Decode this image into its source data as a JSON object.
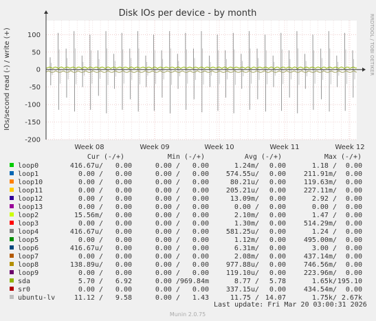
{
  "chart_data": {
    "type": "line",
    "title": "Disk IOs per device - by month",
    "ylabel": "IOs/second read (-) / write (+)",
    "ylim": [
      -200,
      140
    ],
    "yticks": [
      100,
      50,
      0,
      -50,
      -100,
      -150,
      -200
    ],
    "xticks": [
      "Week 08",
      "Week 09",
      "Week 10",
      "Week 11",
      "Week 12"
    ],
    "grid": true,
    "spikes": {
      "sda_write": [
        35,
        105,
        60,
        110,
        40,
        100,
        55,
        110,
        45,
        105,
        60,
        110,
        40,
        100,
        55,
        110,
        45,
        105,
        60,
        110,
        40,
        100,
        55,
        105,
        45,
        110,
        60,
        100,
        40,
        105,
        55,
        110,
        45,
        100,
        60,
        110,
        40,
        105,
        55
      ],
      "sda_read": [
        -45,
        -115,
        -80,
        -120,
        -50,
        -115,
        -75,
        -125,
        -55,
        -115,
        -85,
        -120,
        -50,
        -118,
        -80,
        -125,
        -55,
        -115,
        -85,
        -122,
        -50,
        -118,
        -80,
        -125,
        -55,
        -115,
        -85,
        -120,
        -50,
        -118,
        -80,
        -125,
        -55,
        -115,
        -85,
        -120,
        -50,
        -118,
        -80
      ]
    },
    "series": [
      {
        "name": "loop0",
        "color": "#00cc00",
        "cur": "416.67u/",
        "cur2": "0.00",
        "min": "0.00 /",
        "min2": "0.00",
        "avg": "1.24m/",
        "avg2": "0.00",
        "max": "1.18 /",
        "max2": "0.00"
      },
      {
        "name": "loop1",
        "color": "#0066b3",
        "cur": "0.00 /",
        "cur2": "0.00",
        "min": "0.00 /",
        "min2": "0.00",
        "avg": "574.55u/",
        "avg2": "0.00",
        "max": "211.91m/",
        "max2": "0.00"
      },
      {
        "name": "loop10",
        "color": "#ff8000",
        "cur": "0.00 /",
        "cur2": "0.00",
        "min": "0.00 /",
        "min2": "0.00",
        "avg": "80.21u/",
        "avg2": "0.00",
        "max": "119.63m/",
        "max2": "0.00"
      },
      {
        "name": "loop11",
        "color": "#ffcc00",
        "cur": "0.00 /",
        "cur2": "0.00",
        "min": "0.00 /",
        "min2": "0.00",
        "avg": "205.21u/",
        "avg2": "0.00",
        "max": "227.11m/",
        "max2": "0.00"
      },
      {
        "name": "loop12",
        "color": "#330099",
        "cur": "0.00 /",
        "cur2": "0.00",
        "min": "0.00 /",
        "min2": "0.00",
        "avg": "13.09m/",
        "avg2": "0.00",
        "max": "2.92 /",
        "max2": "0.00"
      },
      {
        "name": "loop13",
        "color": "#990099",
        "cur": "0.00 /",
        "cur2": "0.00",
        "min": "0.00 /",
        "min2": "0.00",
        "avg": "0.00 /",
        "avg2": "0.00",
        "max": "0.00 /",
        "max2": "0.00"
      },
      {
        "name": "loop2",
        "color": "#ccff00",
        "cur": "15.56m/",
        "cur2": "0.00",
        "min": "0.00 /",
        "min2": "0.00",
        "avg": "2.10m/",
        "avg2": "0.00",
        "max": "1.47 /",
        "max2": "0.00"
      },
      {
        "name": "loop3",
        "color": "#ff0000",
        "cur": "0.00 /",
        "cur2": "0.00",
        "min": "0.00 /",
        "min2": "0.00",
        "avg": "1.30m/",
        "avg2": "0.00",
        "max": "514.29m/",
        "max2": "0.00"
      },
      {
        "name": "loop4",
        "color": "#808080",
        "cur": "416.67u/",
        "cur2": "0.00",
        "min": "0.00 /",
        "min2": "0.00",
        "avg": "581.25u/",
        "avg2": "0.00",
        "max": "1.24 /",
        "max2": "0.00"
      },
      {
        "name": "loop5",
        "color": "#008f00",
        "cur": "0.00 /",
        "cur2": "0.00",
        "min": "0.00 /",
        "min2": "0.00",
        "avg": "1.12m/",
        "avg2": "0.00",
        "max": "495.00m/",
        "max2": "0.00"
      },
      {
        "name": "loop6",
        "color": "#00487d",
        "cur": "416.67u/",
        "cur2": "0.00",
        "min": "0.00 /",
        "min2": "0.00",
        "avg": "6.31m/",
        "avg2": "0.00",
        "max": "3.00 /",
        "max2": "0.00"
      },
      {
        "name": "loop7",
        "color": "#b35a00",
        "cur": "0.00 /",
        "cur2": "0.00",
        "min": "0.00 /",
        "min2": "0.00",
        "avg": "2.08m/",
        "avg2": "0.00",
        "max": "437.14m/",
        "max2": "0.00"
      },
      {
        "name": "loop8",
        "color": "#b38f00",
        "cur": "138.89u/",
        "cur2": "0.00",
        "min": "0.00 /",
        "min2": "0.00",
        "avg": "977.88u/",
        "avg2": "0.00",
        "max": "746.56m/",
        "max2": "0.00"
      },
      {
        "name": "loop9",
        "color": "#6b006b",
        "cur": "0.00 /",
        "cur2": "0.00",
        "min": "0.00 /",
        "min2": "0.00",
        "avg": "119.10u/",
        "avg2": "0.00",
        "max": "223.96m/",
        "max2": "0.00"
      },
      {
        "name": "sda",
        "color": "#8fb300",
        "cur": "5.70 /",
        "cur2": "6.92",
        "min": "0.00 /",
        "min2": "969.84m",
        "avg": "8.77 /",
        "avg2": "5.78",
        "max": "1.65k/",
        "max2": "195.10"
      },
      {
        "name": "sr0",
        "color": "#b30000",
        "cur": "0.00 /",
        "cur2": "0.00",
        "min": "0.00 /",
        "min2": "0.00",
        "avg": "337.15u/",
        "avg2": "0.00",
        "max": "434.54m/",
        "max2": "0.00"
      },
      {
        "name": "ubuntu-lv",
        "color": "#bebebe",
        "cur": "11.12 /",
        "cur2": "9.58",
        "min": "0.00 /",
        "min2": "1.43",
        "avg": "11.75 /",
        "avg2": "14.07",
        "max": "1.75k/",
        "max2": "2.67k"
      }
    ]
  },
  "legend_header": {
    "cur": "Cur (-/+)",
    "min": "Min (-/+)",
    "avg": "Avg (-/+)",
    "max": "Max (-/+)"
  },
  "last_update": "Last update: Fri Mar 20 03:00:31 2026",
  "side_text": "RRDTOOL / TOBI OETIKER",
  "footer": "Munin 2.0.75"
}
